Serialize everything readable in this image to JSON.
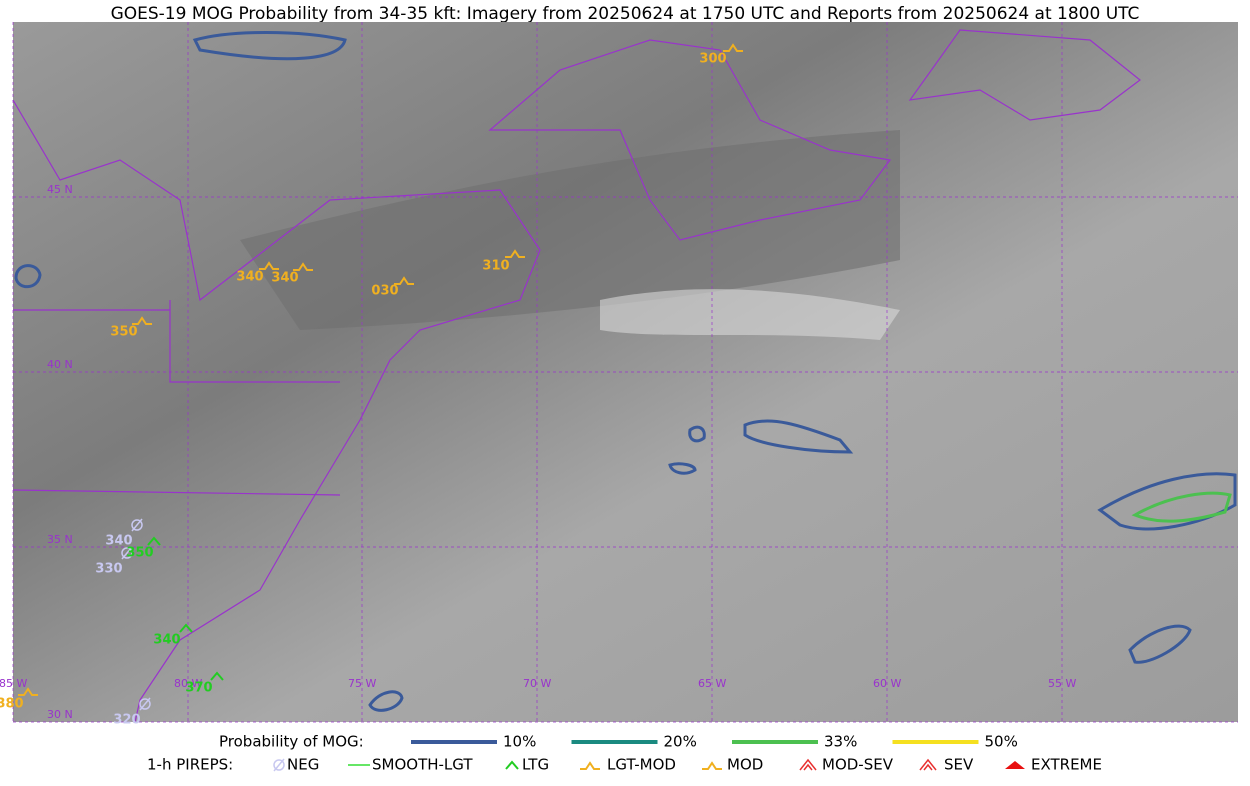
{
  "title": "GOES-19 MOG Probability from 34-35 kft: Imagery from 20250624 at 1750 UTC and Reports from 20250624 at 1800 UTC",
  "grid_labels": {
    "lat": [
      "45 N",
      "40 N",
      "35 N",
      "30 N"
    ],
    "lon": [
      "85 W",
      "80 W",
      "75 W",
      "70 W",
      "65 W",
      "60 W",
      "55 W"
    ]
  },
  "pireps": [
    {
      "label": "300",
      "type": "MOD"
    },
    {
      "label": "340",
      "type": "MOD"
    },
    {
      "label": "340",
      "type": "MOD"
    },
    {
      "label": "030",
      "type": "MOD"
    },
    {
      "label": "310",
      "type": "MOD"
    },
    {
      "label": "350",
      "type": "MOD"
    },
    {
      "label": "380",
      "type": "MOD"
    },
    {
      "label": "340",
      "type": "NEG"
    },
    {
      "label": "330",
      "type": "NEG"
    },
    {
      "label": "320",
      "type": "NEG"
    },
    {
      "label": "350",
      "type": "LTG"
    },
    {
      "label": "340",
      "type": "LTG"
    },
    {
      "label": "370",
      "type": "LTG"
    }
  ],
  "legend": {
    "probability_title": "Probability of MOG:",
    "levels": [
      {
        "label": "10%",
        "color": "#3a5a9a"
      },
      {
        "label": "20%",
        "color": "#1a8a80"
      },
      {
        "label": "33%",
        "color": "#4cc050"
      },
      {
        "label": "50%",
        "color": "#f5e020"
      }
    ],
    "pirep_title": "1-h PIREPS:",
    "pirep_types": [
      {
        "label": "NEG",
        "color": "#c8c8f0"
      },
      {
        "label": "SMOOTH-LGT",
        "color": "#33dd33"
      },
      {
        "label": "LTG",
        "color": "#22cc22"
      },
      {
        "label": "LGT-MOD",
        "color": "#f0b020"
      },
      {
        "label": "MOD",
        "color": "#f0b020"
      },
      {
        "label": "MOD-SEV",
        "color": "#e83030"
      },
      {
        "label": "SEV",
        "color": "#e83030"
      },
      {
        "label": "EXTREME",
        "color": "#e81010"
      }
    ]
  }
}
